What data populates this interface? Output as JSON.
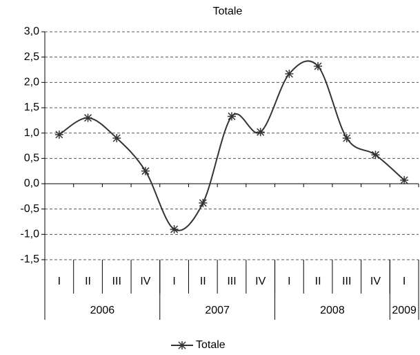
{
  "chart_data": {
    "type": "line",
    "title": "Totale",
    "groups": [
      {
        "label": "2006",
        "quarters": [
          "I",
          "II",
          "III",
          "IV"
        ]
      },
      {
        "label": "2007",
        "quarters": [
          "I",
          "II",
          "III",
          "IV"
        ]
      },
      {
        "label": "2008",
        "quarters": [
          "I",
          "II",
          "III",
          "IV"
        ]
      },
      {
        "label": "2009",
        "quarters": [
          "I"
        ]
      }
    ],
    "series": [
      {
        "name": "Totale",
        "color": "#333333",
        "values": [
          0.97,
          1.3,
          0.9,
          0.25,
          -0.9,
          -0.38,
          1.33,
          1.02,
          2.17,
          2.32,
          0.9,
          0.57,
          0.07
        ]
      }
    ],
    "ylim": [
      -1.5,
      3.0
    ],
    "yticks": [
      {
        "value": -1.5,
        "label": "-1,5"
      },
      {
        "value": -1.0,
        "label": "-1,0"
      },
      {
        "value": -0.5,
        "label": "-0,5"
      },
      {
        "value": 0,
        "label": "0,0"
      },
      {
        "value": 0.5,
        "label": "0,5"
      },
      {
        "value": 1.0,
        "label": "1,0"
      },
      {
        "value": 1.5,
        "label": "1,5"
      },
      {
        "value": 2.0,
        "label": "2,0"
      },
      {
        "value": 2.5,
        "label": "2,5"
      },
      {
        "value": 3.0,
        "label": "3,0"
      }
    ],
    "grid": true,
    "smooth": true,
    "legend": "bottom"
  }
}
